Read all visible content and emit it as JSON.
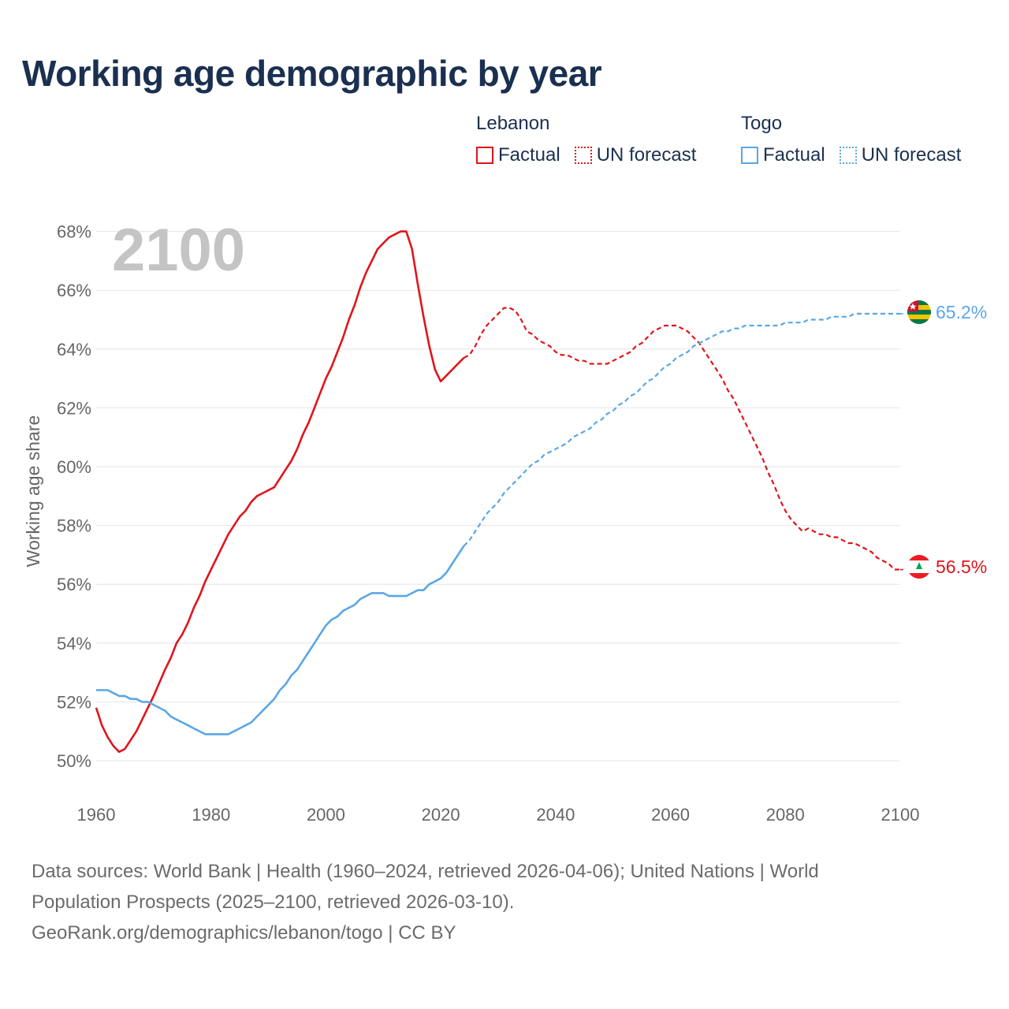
{
  "chart_data": {
    "type": "line",
    "title": "Working age demographic by year",
    "ylabel": "Working age share",
    "xlabel": "",
    "year_display": "2100",
    "xlim": [
      1960,
      2100
    ],
    "ylim": [
      49.5,
      68.2
    ],
    "x_ticks": [
      1960,
      1980,
      2000,
      2020,
      2040,
      2060,
      2080,
      2100
    ],
    "x_tick_labels": [
      "1960",
      "1980",
      "2000",
      "2020",
      "2040",
      "2060",
      "2080",
      "2100"
    ],
    "y_ticks": [
      50,
      52,
      54,
      56,
      58,
      60,
      62,
      64,
      66,
      68
    ],
    "y_tick_labels": [
      "50%",
      "52%",
      "54%",
      "56%",
      "58%",
      "60%",
      "62%",
      "64%",
      "66%",
      "68%"
    ],
    "legend": {
      "groups": [
        {
          "title": "Lebanon",
          "factual_label": "Factual",
          "forecast_label": "UN forecast",
          "color": "#e0151b"
        },
        {
          "title": "Togo",
          "factual_label": "Factual",
          "forecast_label": "UN forecast",
          "color": "#5aa7e6"
        }
      ]
    },
    "series": [
      {
        "name": "Lebanon",
        "color": "#e0151b",
        "end_label": "56.5%",
        "factual": {
          "x": [
            1960,
            1961,
            1962,
            1963,
            1964,
            1965,
            1966,
            1967,
            1968,
            1970,
            1972,
            1973,
            1974,
            1975,
            1976,
            1977,
            1978,
            1979,
            1980,
            1982,
            1983,
            1984,
            1985,
            1986,
            1987,
            1988,
            1989,
            1990,
            1991,
            1992,
            1993,
            1994,
            1995,
            1996,
            1997,
            1998,
            1999,
            2000,
            2001,
            2002,
            2003,
            2004,
            2005,
            2006,
            2007,
            2008,
            2009,
            2010,
            2011,
            2012,
            2013,
            2014,
            2015,
            2016,
            2017,
            2018,
            2019,
            2020,
            2022,
            2024
          ],
          "y": [
            51.8,
            51.2,
            50.8,
            50.5,
            50.3,
            50.4,
            50.7,
            51.0,
            51.4,
            52.2,
            53.1,
            53.5,
            54.0,
            54.3,
            54.7,
            55.2,
            55.6,
            56.1,
            56.5,
            57.3,
            57.7,
            58.0,
            58.3,
            58.5,
            58.8,
            59.0,
            59.1,
            59.2,
            59.3,
            59.6,
            59.9,
            60.2,
            60.6,
            61.1,
            61.5,
            62.0,
            62.5,
            63.0,
            63.4,
            63.9,
            64.4,
            65.0,
            65.5,
            66.1,
            66.6,
            67.0,
            67.4,
            67.6,
            67.8,
            67.9,
            68.0,
            68.0,
            67.4,
            66.2,
            65.1,
            64.1,
            63.3,
            62.9,
            63.3,
            63.7
          ]
        },
        "forecast": {
          "x": [
            2024,
            2025,
            2026,
            2027,
            2028,
            2029,
            2030,
            2031,
            2032,
            2033,
            2034,
            2035,
            2036,
            2037,
            2038,
            2039,
            2040,
            2041,
            2042,
            2043,
            2044,
            2045,
            2046,
            2047,
            2048,
            2049,
            2050,
            2051,
            2052,
            2053,
            2054,
            2055,
            2056,
            2057,
            2058,
            2059,
            2060,
            2061,
            2062,
            2063,
            2064,
            2065,
            2066,
            2067,
            2068,
            2069,
            2070,
            2071,
            2072,
            2073,
            2074,
            2075,
            2076,
            2077,
            2078,
            2079,
            2080,
            2081,
            2082,
            2083,
            2084,
            2085,
            2086,
            2087,
            2088,
            2089,
            2090,
            2091,
            2092,
            2093,
            2094,
            2095,
            2096,
            2097,
            2098,
            2099,
            2100
          ],
          "y": [
            63.7,
            63.8,
            64.1,
            64.5,
            64.8,
            65.0,
            65.2,
            65.4,
            65.4,
            65.3,
            65.0,
            64.6,
            64.5,
            64.3,
            64.2,
            64.1,
            63.9,
            63.8,
            63.8,
            63.7,
            63.6,
            63.6,
            63.5,
            63.5,
            63.5,
            63.5,
            63.6,
            63.7,
            63.8,
            63.9,
            64.1,
            64.2,
            64.4,
            64.6,
            64.7,
            64.8,
            64.8,
            64.8,
            64.7,
            64.6,
            64.4,
            64.2,
            63.9,
            63.6,
            63.3,
            63.0,
            62.6,
            62.3,
            61.9,
            61.5,
            61.1,
            60.7,
            60.3,
            59.8,
            59.4,
            58.9,
            58.5,
            58.2,
            58.0,
            57.8,
            57.9,
            57.8,
            57.7,
            57.7,
            57.6,
            57.6,
            57.5,
            57.4,
            57.4,
            57.3,
            57.2,
            57.1,
            56.9,
            56.8,
            56.7,
            56.5,
            56.5
          ]
        }
      },
      {
        "name": "Togo",
        "color": "#5aa7e6",
        "end_label": "65.2%",
        "factual": {
          "x": [
            1960,
            1961,
            1962,
            1963,
            1964,
            1965,
            1966,
            1967,
            1968,
            1969,
            1970,
            1971,
            1972,
            1973,
            1974,
            1975,
            1976,
            1977,
            1978,
            1979,
            1980,
            1981,
            1982,
            1983,
            1984,
            1985,
            1986,
            1987,
            1988,
            1989,
            1990,
            1991,
            1992,
            1993,
            1994,
            1995,
            1996,
            1997,
            1998,
            1999,
            2000,
            2001,
            2002,
            2003,
            2004,
            2005,
            2006,
            2007,
            2008,
            2009,
            2010,
            2011,
            2012,
            2013,
            2014,
            2015,
            2016,
            2017,
            2018,
            2019,
            2020,
            2021,
            2022,
            2023,
            2024
          ],
          "y": [
            52.4,
            52.4,
            52.4,
            52.3,
            52.2,
            52.2,
            52.1,
            52.1,
            52.0,
            52.0,
            51.9,
            51.8,
            51.7,
            51.5,
            51.4,
            51.3,
            51.2,
            51.1,
            51.0,
            50.9,
            50.9,
            50.9,
            50.9,
            50.9,
            51.0,
            51.1,
            51.2,
            51.3,
            51.5,
            51.7,
            51.9,
            52.1,
            52.4,
            52.6,
            52.9,
            53.1,
            53.4,
            53.7,
            54.0,
            54.3,
            54.6,
            54.8,
            54.9,
            55.1,
            55.2,
            55.3,
            55.5,
            55.6,
            55.7,
            55.7,
            55.7,
            55.6,
            55.6,
            55.6,
            55.6,
            55.7,
            55.8,
            55.8,
            56.0,
            56.1,
            56.2,
            56.4,
            56.7,
            57.0,
            57.3
          ]
        },
        "forecast": {
          "x": [
            2024,
            2025,
            2026,
            2027,
            2028,
            2029,
            2030,
            2031,
            2032,
            2033,
            2034,
            2035,
            2036,
            2037,
            2038,
            2039,
            2040,
            2041,
            2042,
            2043,
            2044,
            2045,
            2046,
            2047,
            2048,
            2049,
            2050,
            2051,
            2052,
            2053,
            2054,
            2055,
            2056,
            2057,
            2058,
            2059,
            2060,
            2061,
            2062,
            2063,
            2064,
            2065,
            2066,
            2067,
            2068,
            2069,
            2070,
            2071,
            2072,
            2073,
            2074,
            2075,
            2076,
            2077,
            2078,
            2079,
            2080,
            2081,
            2082,
            2083,
            2084,
            2085,
            2086,
            2087,
            2088,
            2089,
            2090,
            2091,
            2092,
            2093,
            2094,
            2095,
            2096,
            2097,
            2098,
            2099,
            2100
          ],
          "y": [
            57.3,
            57.5,
            57.8,
            58.1,
            58.4,
            58.6,
            58.8,
            59.1,
            59.3,
            59.5,
            59.7,
            59.9,
            60.1,
            60.2,
            60.4,
            60.5,
            60.6,
            60.7,
            60.8,
            61.0,
            61.1,
            61.2,
            61.3,
            61.5,
            61.6,
            61.8,
            61.9,
            62.1,
            62.2,
            62.4,
            62.5,
            62.7,
            62.9,
            63.0,
            63.2,
            63.4,
            63.5,
            63.7,
            63.8,
            63.9,
            64.1,
            64.2,
            64.3,
            64.4,
            64.5,
            64.6,
            64.6,
            64.7,
            64.7,
            64.8,
            64.8,
            64.8,
            64.8,
            64.8,
            64.8,
            64.8,
            64.9,
            64.9,
            64.9,
            64.9,
            65.0,
            65.0,
            65.0,
            65.0,
            65.1,
            65.1,
            65.1,
            65.1,
            65.2,
            65.2,
            65.2,
            65.2,
            65.2,
            65.2,
            65.2,
            65.2,
            65.2
          ]
        }
      }
    ]
  },
  "footer": {
    "line1": "Data sources: World Bank | Health (1960–2024, retrieved 2026-04-06); United Nations | World",
    "line2": "Population Prospects (2025–2100, retrieved 2026-03-10).",
    "line3": "GeoRank.org/demographics/lebanon/togo | CC BY"
  }
}
